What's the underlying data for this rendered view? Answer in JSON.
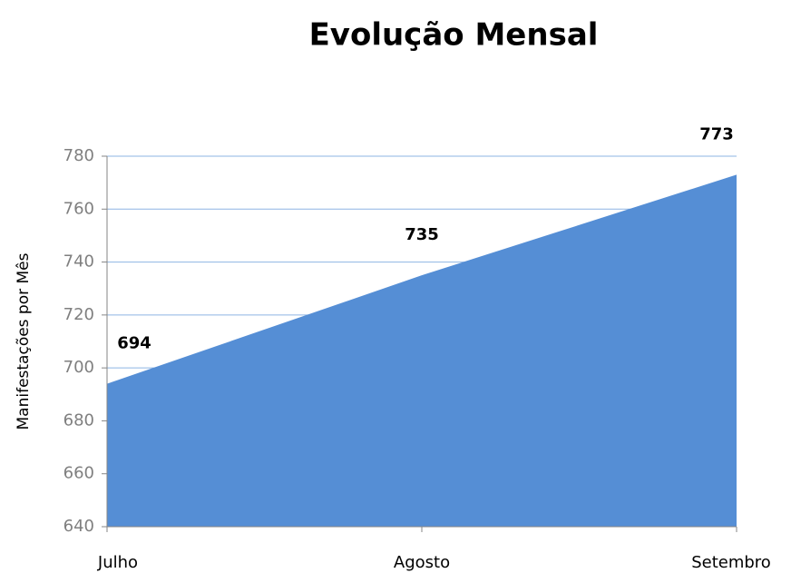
{
  "chart_data": {
    "type": "area",
    "title": "Evolução Mensal",
    "y_label": "Manifestações por Mês",
    "categories": [
      "Julho",
      "Agosto",
      "Setembro"
    ],
    "values": [
      694,
      735,
      773
    ],
    "color": "#558ed5",
    "ylim": [
      640,
      780
    ],
    "yticks": [
      640,
      660,
      680,
      700,
      720,
      740,
      760,
      780
    ],
    "grid": true
  }
}
